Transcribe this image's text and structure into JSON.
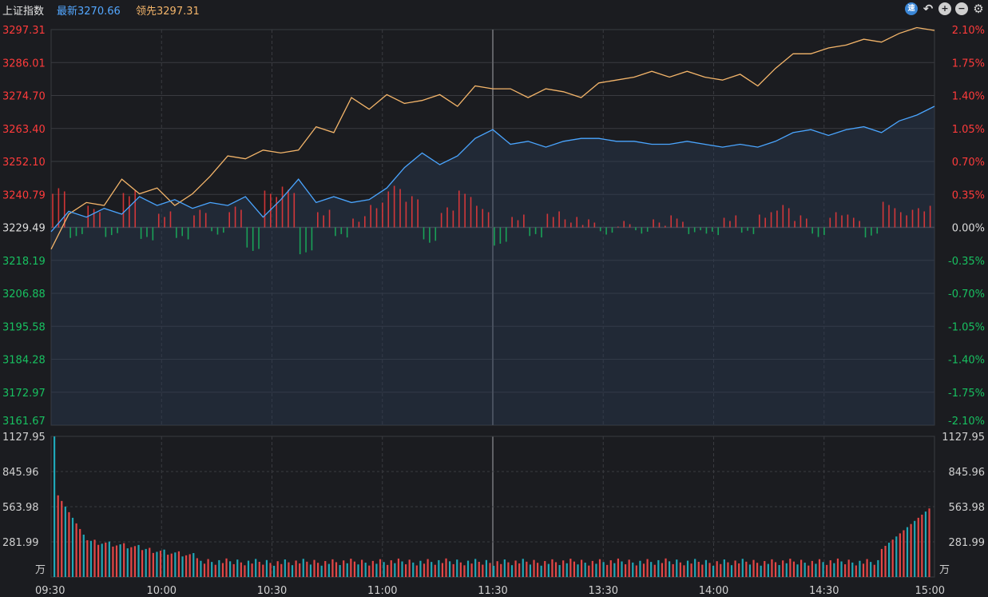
{
  "header": {
    "title": "上证指数",
    "latest_label": "最新",
    "latest_value": "3270.66",
    "lead_label": "领先",
    "lead_value": "3297.31",
    "icons": [
      "speed-icon",
      "undo-icon",
      "zoom-in-icon",
      "zoom-out-icon",
      "settings-icon"
    ],
    "speed_glyph": "速",
    "undo_glyph": "↶",
    "zoom_in_glyph": "+",
    "zoom_out_glyph": "−",
    "settings_glyph": "⚙"
  },
  "colors": {
    "up": "#ff3b3b",
    "down": "#18c060",
    "neutral": "#dddddd",
    "price_line": "#4aa5ff",
    "lead_line": "#f4b56a",
    "volume_up": "#e44646",
    "volume_down": "#1fa8b8",
    "grid": "#3a3b40"
  },
  "chart_data": [
    {
      "type": "line",
      "y_left_ticks": [
        "3297.31",
        "3286.01",
        "3274.70",
        "3263.40",
        "3252.10",
        "3240.79",
        "3229.49",
        "3218.19",
        "3206.88",
        "3195.58",
        "3184.28",
        "3172.97",
        "3161.67"
      ],
      "y_right_ticks": [
        "2.10%",
        "1.75%",
        "1.40%",
        "1.05%",
        "0.70%",
        "0.35%",
        "0.00%",
        "-0.35%",
        "-0.70%",
        "-1.05%",
        "-1.40%",
        "-1.75%",
        "-2.10%"
      ],
      "ylim": [
        3161.67,
        3297.31
      ],
      "base": 3229.49,
      "x_ticks": [
        "09:30",
        "10:00",
        "10:30",
        "11:00",
        "11:30",
        "13:30",
        "14:00",
        "14:30",
        "15:00"
      ],
      "series": [
        {
          "key": "price",
          "points": [
            [
              0,
              3228
            ],
            [
              3,
              3235
            ],
            [
              6,
              3233
            ],
            [
              9,
              3236
            ],
            [
              12,
              3234
            ],
            [
              15,
              3240
            ],
            [
              18,
              3237
            ],
            [
              21,
              3239
            ],
            [
              24,
              3236
            ],
            [
              27,
              3238
            ],
            [
              30,
              3237
            ],
            [
              33,
              3240
            ],
            [
              36,
              3233
            ],
            [
              39,
              3239
            ],
            [
              42,
              3246
            ],
            [
              45,
              3238
            ],
            [
              48,
              3240
            ],
            [
              51,
              3238
            ],
            [
              54,
              3239
            ],
            [
              57,
              3243
            ],
            [
              60,
              3250
            ],
            [
              63,
              3255
            ],
            [
              66,
              3251
            ],
            [
              69,
              3254
            ],
            [
              72,
              3260
            ],
            [
              75,
              3263
            ],
            [
              78,
              3258
            ],
            [
              81,
              3259
            ],
            [
              84,
              3257
            ],
            [
              87,
              3259
            ],
            [
              90,
              3260
            ],
            [
              93,
              3260
            ],
            [
              96,
              3259
            ],
            [
              99,
              3259
            ],
            [
              102,
              3258
            ],
            [
              105,
              3258
            ],
            [
              108,
              3259
            ],
            [
              111,
              3258
            ],
            [
              114,
              3257
            ],
            [
              117,
              3258
            ],
            [
              120,
              3257
            ],
            [
              123,
              3259
            ],
            [
              126,
              3262
            ],
            [
              129,
              3263
            ],
            [
              132,
              3261
            ],
            [
              135,
              3263
            ],
            [
              138,
              3264
            ],
            [
              141,
              3262
            ],
            [
              144,
              3266
            ],
            [
              147,
              3268
            ],
            [
              150,
              3271
            ]
          ]
        },
        {
          "key": "lead",
          "points": [
            [
              0,
              3222
            ],
            [
              3,
              3234
            ],
            [
              6,
              3238
            ],
            [
              9,
              3237
            ],
            [
              12,
              3246
            ],
            [
              15,
              3241
            ],
            [
              18,
              3243
            ],
            [
              21,
              3237
            ],
            [
              24,
              3241
            ],
            [
              27,
              3247
            ],
            [
              30,
              3254
            ],
            [
              33,
              3253
            ],
            [
              36,
              3256
            ],
            [
              39,
              3255
            ],
            [
              42,
              3256
            ],
            [
              45,
              3264
            ],
            [
              48,
              3262
            ],
            [
              51,
              3274
            ],
            [
              54,
              3270
            ],
            [
              57,
              3275
            ],
            [
              60,
              3272
            ],
            [
              63,
              3273
            ],
            [
              66,
              3275
            ],
            [
              69,
              3271
            ],
            [
              72,
              3278
            ],
            [
              75,
              3277
            ],
            [
              78,
              3277
            ],
            [
              81,
              3274
            ],
            [
              84,
              3277
            ],
            [
              87,
              3276
            ],
            [
              90,
              3274
            ],
            [
              93,
              3279
            ],
            [
              96,
              3280
            ],
            [
              99,
              3281
            ],
            [
              102,
              3283
            ],
            [
              105,
              3281
            ],
            [
              108,
              3283
            ],
            [
              111,
              3281
            ],
            [
              114,
              3280
            ],
            [
              117,
              3282
            ],
            [
              120,
              3278
            ],
            [
              123,
              3284
            ],
            [
              126,
              3289
            ],
            [
              129,
              3289
            ],
            [
              132,
              3291
            ],
            [
              135,
              3292
            ],
            [
              138,
              3294
            ],
            [
              141,
              3293
            ],
            [
              144,
              3296
            ],
            [
              147,
              3298
            ],
            [
              150,
              3297
            ]
          ]
        }
      ]
    },
    {
      "type": "bar",
      "y_ticks": [
        "1127.95",
        "845.96",
        "563.98",
        "281.99"
      ],
      "unit": "万",
      "ylim": [
        0,
        1127.95
      ]
    }
  ]
}
